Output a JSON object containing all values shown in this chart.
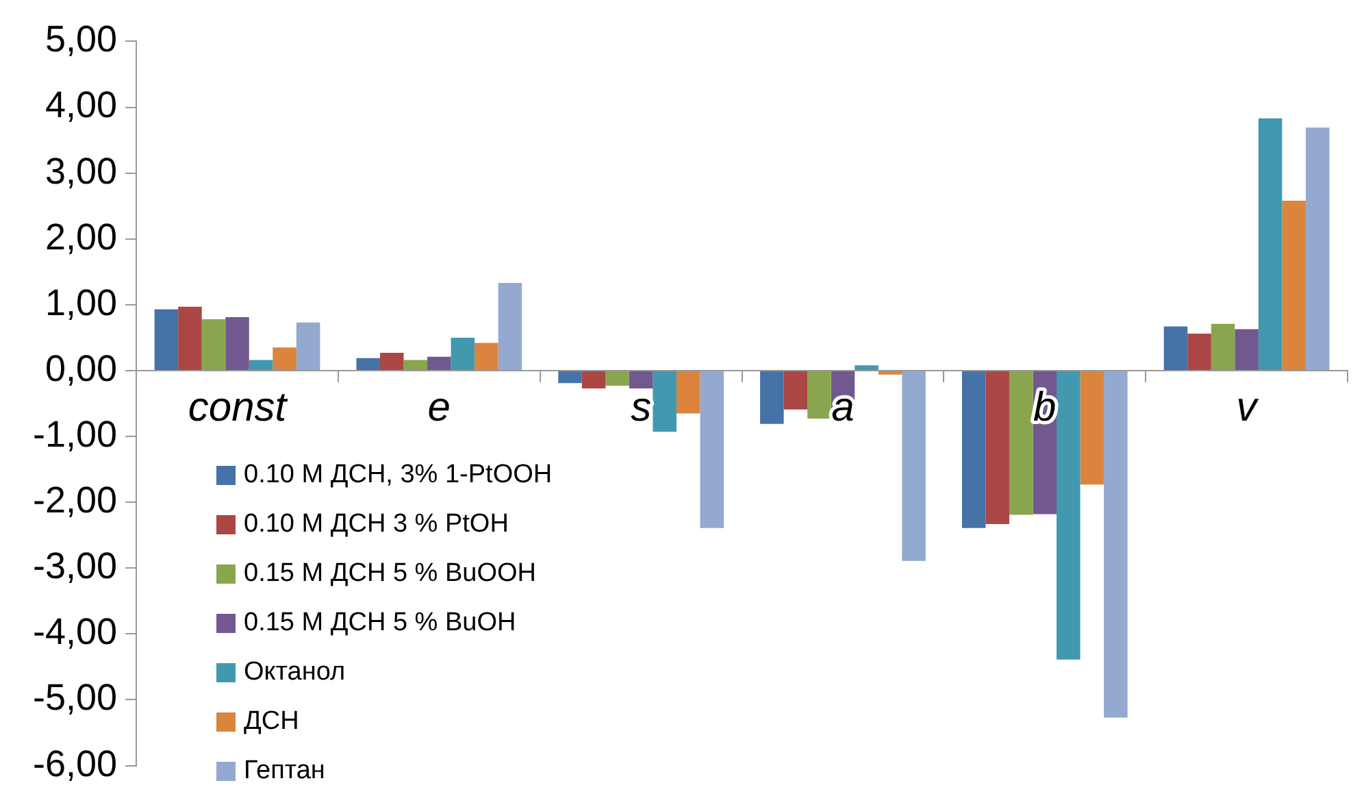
{
  "chart_data": {
    "type": "bar",
    "categories": [
      "const",
      "e",
      "s",
      "a",
      "b",
      "v"
    ],
    "series": [
      {
        "name": "0.10 M ДСН, 3% 1-PtOOH",
        "color": "#4572a7",
        "values": [
          0.93,
          0.19,
          -0.19,
          -0.81,
          -2.39,
          0.67
        ]
      },
      {
        "name": "0.10 M ДСН 3 % PtOH",
        "color": "#aa4643",
        "values": [
          0.97,
          0.27,
          -0.27,
          -0.59,
          -2.33,
          0.56
        ]
      },
      {
        "name": "0.15 M ДСН 5 % BuOOH",
        "color": "#89a54e",
        "values": [
          0.78,
          0.16,
          -0.23,
          -0.73,
          -2.19,
          0.71
        ]
      },
      {
        "name": "0.15 M ДСН 5 % BuOH",
        "color": "#71588f",
        "values": [
          0.81,
          0.21,
          -0.27,
          -0.61,
          -2.18,
          0.63
        ]
      },
      {
        "name": "Октанол",
        "color": "#4198af",
        "values": [
          0.16,
          0.5,
          -0.93,
          0.08,
          -4.39,
          3.83
        ]
      },
      {
        "name": "ДСН",
        "color": "#db843d",
        "values": [
          0.35,
          0.42,
          -0.65,
          -0.06,
          -1.73,
          2.58
        ]
      },
      {
        "name": "Гептан",
        "color": "#93a9cf",
        "values": [
          0.73,
          1.33,
          -2.39,
          -2.89,
          -5.27,
          3.69
        ]
      }
    ],
    "ylim": [
      -6,
      5
    ],
    "yticks": [
      {
        "value": -6,
        "label": "-6,00"
      },
      {
        "value": -5,
        "label": "-5,00"
      },
      {
        "value": -4,
        "label": "-4,00"
      },
      {
        "value": -3,
        "label": "-3,00"
      },
      {
        "value": -2,
        "label": "-2,00"
      },
      {
        "value": -1,
        "label": "-1,00"
      },
      {
        "value": 0,
        "label": "0,00"
      },
      {
        "value": 1,
        "label": "1,00"
      },
      {
        "value": 2,
        "label": "2,00"
      },
      {
        "value": 3,
        "label": "3,00"
      },
      {
        "value": 4,
        "label": "4,00"
      },
      {
        "value": 5,
        "label": "5,00"
      }
    ],
    "grid": false,
    "legend": "bottom left"
  }
}
